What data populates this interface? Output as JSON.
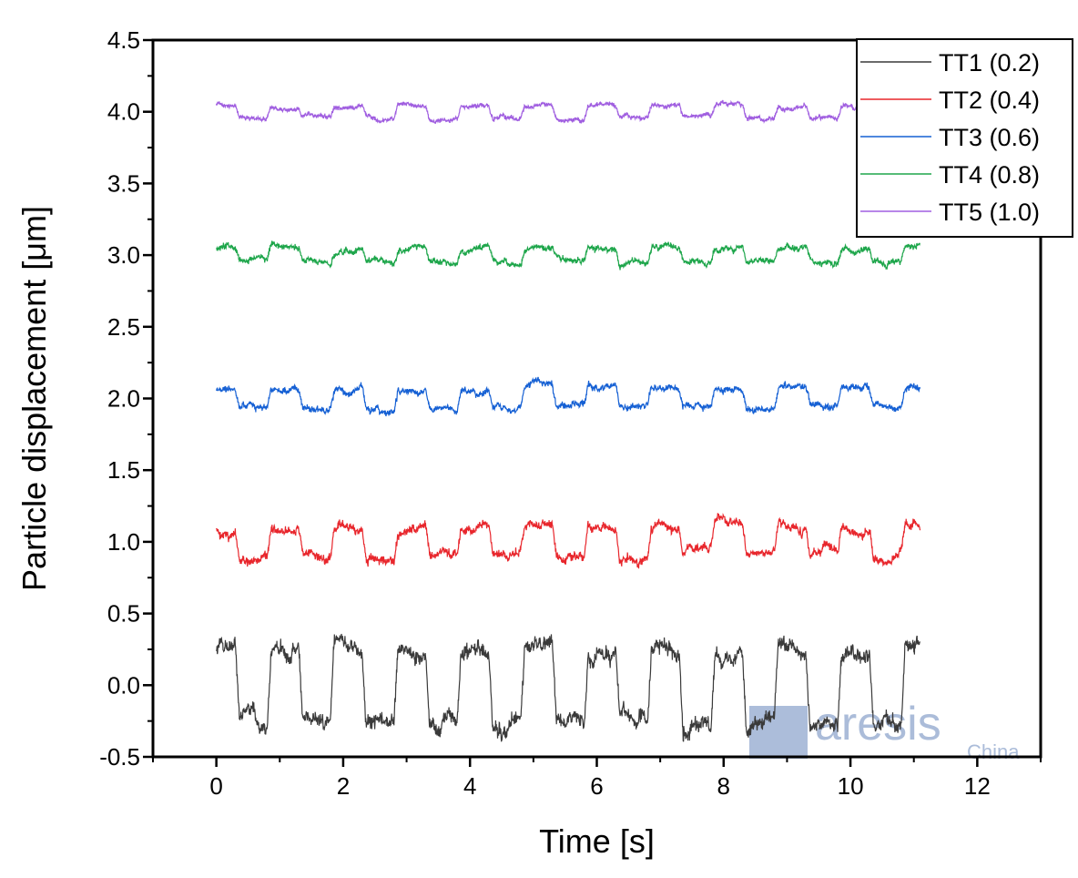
{
  "chart_data": {
    "type": "line",
    "xlabel": "Time [s]",
    "ylabel": "Particle displacement [μm]",
    "xlim": [
      -1,
      13
    ],
    "ylim": [
      -0.5,
      4.5
    ],
    "xticks": [
      0,
      2,
      4,
      6,
      8,
      10,
      12
    ],
    "xtick_labels": [
      "0",
      "2",
      "4",
      "6",
      "8",
      "10",
      "12"
    ],
    "yticks": [
      -0.5,
      0.0,
      0.5,
      1.0,
      1.5,
      2.0,
      2.5,
      3.0,
      3.5,
      4.0,
      4.5
    ],
    "ytick_labels": [
      "-0.5",
      "0.0",
      "0.5",
      "1.0",
      "1.5",
      "2.0",
      "2.5",
      "3.0",
      "3.5",
      "4.0",
      "4.5"
    ],
    "grid": false,
    "legend_position": "top-right",
    "time_range": [
      0,
      11.1
    ],
    "switch_period_s": 1.0,
    "series": [
      {
        "name": "TT1 (0.2)",
        "color": "#3a3a3a",
        "baseline": 0.0,
        "amplitude": 0.25,
        "noise": 0.05
      },
      {
        "name": "TT2 (0.4)",
        "color": "#e8262c",
        "baseline": 1.0,
        "amplitude": 0.1,
        "noise": 0.03
      },
      {
        "name": "TT3 (0.6)",
        "color": "#1560d4",
        "baseline": 2.0,
        "amplitude": 0.065,
        "noise": 0.022
      },
      {
        "name": "TT4 (0.8)",
        "color": "#1ea64b",
        "baseline": 3.0,
        "amplitude": 0.05,
        "noise": 0.02
      },
      {
        "name": "TT5 (1.0)",
        "color": "#a05ee0",
        "baseline": 4.0,
        "amplitude": 0.04,
        "noise": 0.015
      }
    ]
  },
  "watermark": {
    "brand": "aresis",
    "sub": "China",
    "color": "#9db1d3"
  }
}
